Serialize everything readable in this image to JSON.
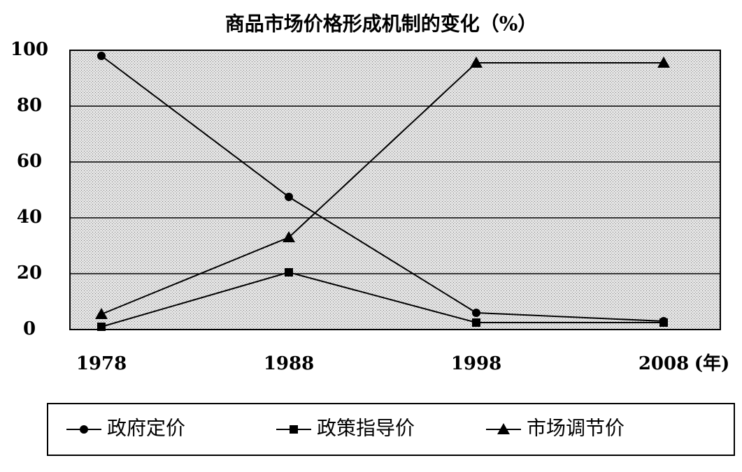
{
  "chart_data": {
    "type": "line",
    "title": "商品市场价格形成机制的变化（%）",
    "x_label": "(年)",
    "categories": [
      "1978",
      "1988",
      "1998",
      "2008"
    ],
    "series": [
      {
        "name": "政府定价",
        "color": "#000000",
        "marker": "circle",
        "values": [
          98,
          47.5,
          6,
          3
        ]
      },
      {
        "name": "政策指导价",
        "color": "#000000",
        "marker": "square",
        "values": [
          1,
          20.5,
          2.5,
          2.5
        ]
      },
      {
        "name": "市场调节价",
        "color": "#000000",
        "marker": "triangle",
        "values": [
          5.5,
          33,
          95.5,
          95.5
        ]
      }
    ],
    "ylim": [
      0,
      100
    ],
    "yticks": [
      0,
      20,
      40,
      60,
      80,
      100
    ],
    "grid": true
  }
}
